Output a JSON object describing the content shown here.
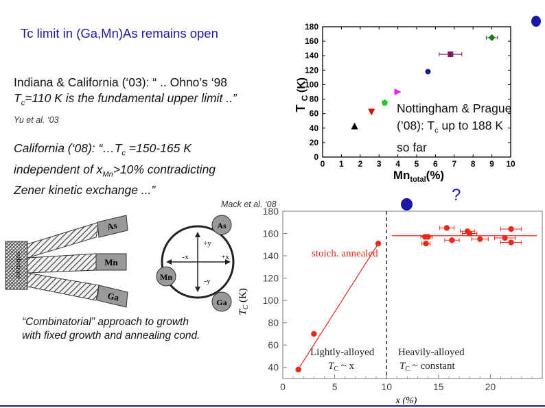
{
  "slide": {
    "title": "Tc limit in (Ga,Mn)As remains open",
    "indiana": {
      "line1": "Indiana & California (‘03): “ .. Ohno’s ‘98",
      "line2_pre": "T",
      "line2_sub": "c",
      "line2_post": "=110 K is the fundamental upper limit  ..”",
      "citation": "Yu et al. ‘03"
    },
    "california": {
      "line1_pre": "California (‘08): “…T",
      "line1_sub": "c",
      "line1_post": " =150-165 K",
      "line2_pre": "independent of x",
      "line2_sub": "Mn",
      "line2_post": ">10% contradicting",
      "line3": "Zener kinetic exchange ...”",
      "citation": "Mack et al. ‘08"
    },
    "nottingham": {
      "line1": "Nottingham & Prague",
      "line2_pre": "(’08): T",
      "line2_sub": "c",
      "line2_post": " up to 188 K",
      "line3": "so far"
    },
    "combinatorial": {
      "line1": "“Combinatorial” approach to growth",
      "line2": "with fixed growth and annealing cond."
    },
    "question_mark": "?",
    "colors": {
      "title_blue": "#1a1aa6",
      "red": "#b00000",
      "plot_red": "#e8291b"
    }
  },
  "diagram": {
    "substrate_label": "substrate",
    "arms": [
      "As",
      "Mn",
      "Ga"
    ],
    "circles": [
      "As",
      "Mn",
      "Ga"
    ],
    "axis_labels": {
      "up": "+y",
      "down": "-y",
      "left": "-x",
      "right": "+x"
    }
  },
  "chart_data": [
    {
      "type": "scatter",
      "xlabel_main": "Mn",
      "xlabel_sub": "total",
      "xlabel_unit": "(%)",
      "ylabel_main": "T",
      "ylabel_sub": "C",
      "ylabel_unit": "(K)",
      "xlim": [
        0,
        10
      ],
      "ylim": [
        0,
        180
      ],
      "xticks": [
        0,
        1,
        2,
        3,
        4,
        5,
        6,
        7,
        8,
        9,
        10
      ],
      "yticks": [
        0,
        20,
        40,
        60,
        80,
        100,
        120,
        140,
        160,
        180
      ],
      "points": [
        {
          "x": 1.7,
          "y": 43,
          "marker": "triangle-up",
          "color": "#000000"
        },
        {
          "x": 2.6,
          "y": 62,
          "marker": "triangle-down",
          "color": "#d01010"
        },
        {
          "x": 3.3,
          "y": 75,
          "marker": "pentagon",
          "color": "#22cc22"
        },
        {
          "x": 4.0,
          "y": 90,
          "marker": "triangle-right",
          "color": "#ee22ee"
        },
        {
          "x": 5.6,
          "y": 118,
          "marker": "circle",
          "color": "#1a1a80"
        },
        {
          "x": 6.8,
          "y": 142,
          "marker": "square",
          "color": "#801a60",
          "xerr": 0.6
        },
        {
          "x": 9.0,
          "y": 165,
          "marker": "diamond",
          "color": "#1a7a1a",
          "xerr": 0.3
        }
      ]
    },
    {
      "type": "scatter",
      "xlabel": "x (%)",
      "ylabel": "T",
      "ylabel_sub": "C",
      "ylabel_unit": " (K)",
      "xlim": [
        0,
        25
      ],
      "ylim": [
        30,
        180
      ],
      "xticks": [
        0,
        5,
        10,
        15,
        20
      ],
      "yticks": [
        40,
        60,
        80,
        100,
        120,
        140,
        160,
        180
      ],
      "divider_x": 10,
      "annotations": {
        "legend": "stoich. annealed",
        "left_region": "Lightly-alloyed",
        "left_rule_pre": "T",
        "left_rule_sub": "C",
        "left_rule_post": " ~ x",
        "right_region": "Heavily-alloyed",
        "right_rule_pre": "T",
        "right_rule_sub": "C",
        "right_rule_post": " ~ constant"
      },
      "fit_lines": [
        {
          "x": [
            1.4,
            9.2
          ],
          "y": [
            37,
            151
          ]
        },
        {
          "x": [
            10.5,
            24.5
          ],
          "y": [
            158,
            158
          ]
        }
      ],
      "points": [
        {
          "x": 1.5,
          "y": 38
        },
        {
          "x": 3.0,
          "y": 70
        },
        {
          "x": 9.2,
          "y": 151
        },
        {
          "x": 13.7,
          "y": 157,
          "xerr": 0.4
        },
        {
          "x": 14.0,
          "y": 157,
          "xerr": 0.4
        },
        {
          "x": 13.8,
          "y": 151,
          "xerr": 0.4
        },
        {
          "x": 15.8,
          "y": 165,
          "xerr": 0.7
        },
        {
          "x": 16.3,
          "y": 154,
          "xerr": 0.7
        },
        {
          "x": 17.8,
          "y": 162,
          "xerr": 0.7
        },
        {
          "x": 18.0,
          "y": 160,
          "xerr": 0.7
        },
        {
          "x": 19.0,
          "y": 155,
          "xerr": 0.8
        },
        {
          "x": 21.4,
          "y": 156,
          "xerr": 1.0
        },
        {
          "x": 22.0,
          "y": 164,
          "xerr": 1.0
        },
        {
          "x": 22.0,
          "y": 152,
          "xerr": 1.0
        }
      ]
    }
  ]
}
